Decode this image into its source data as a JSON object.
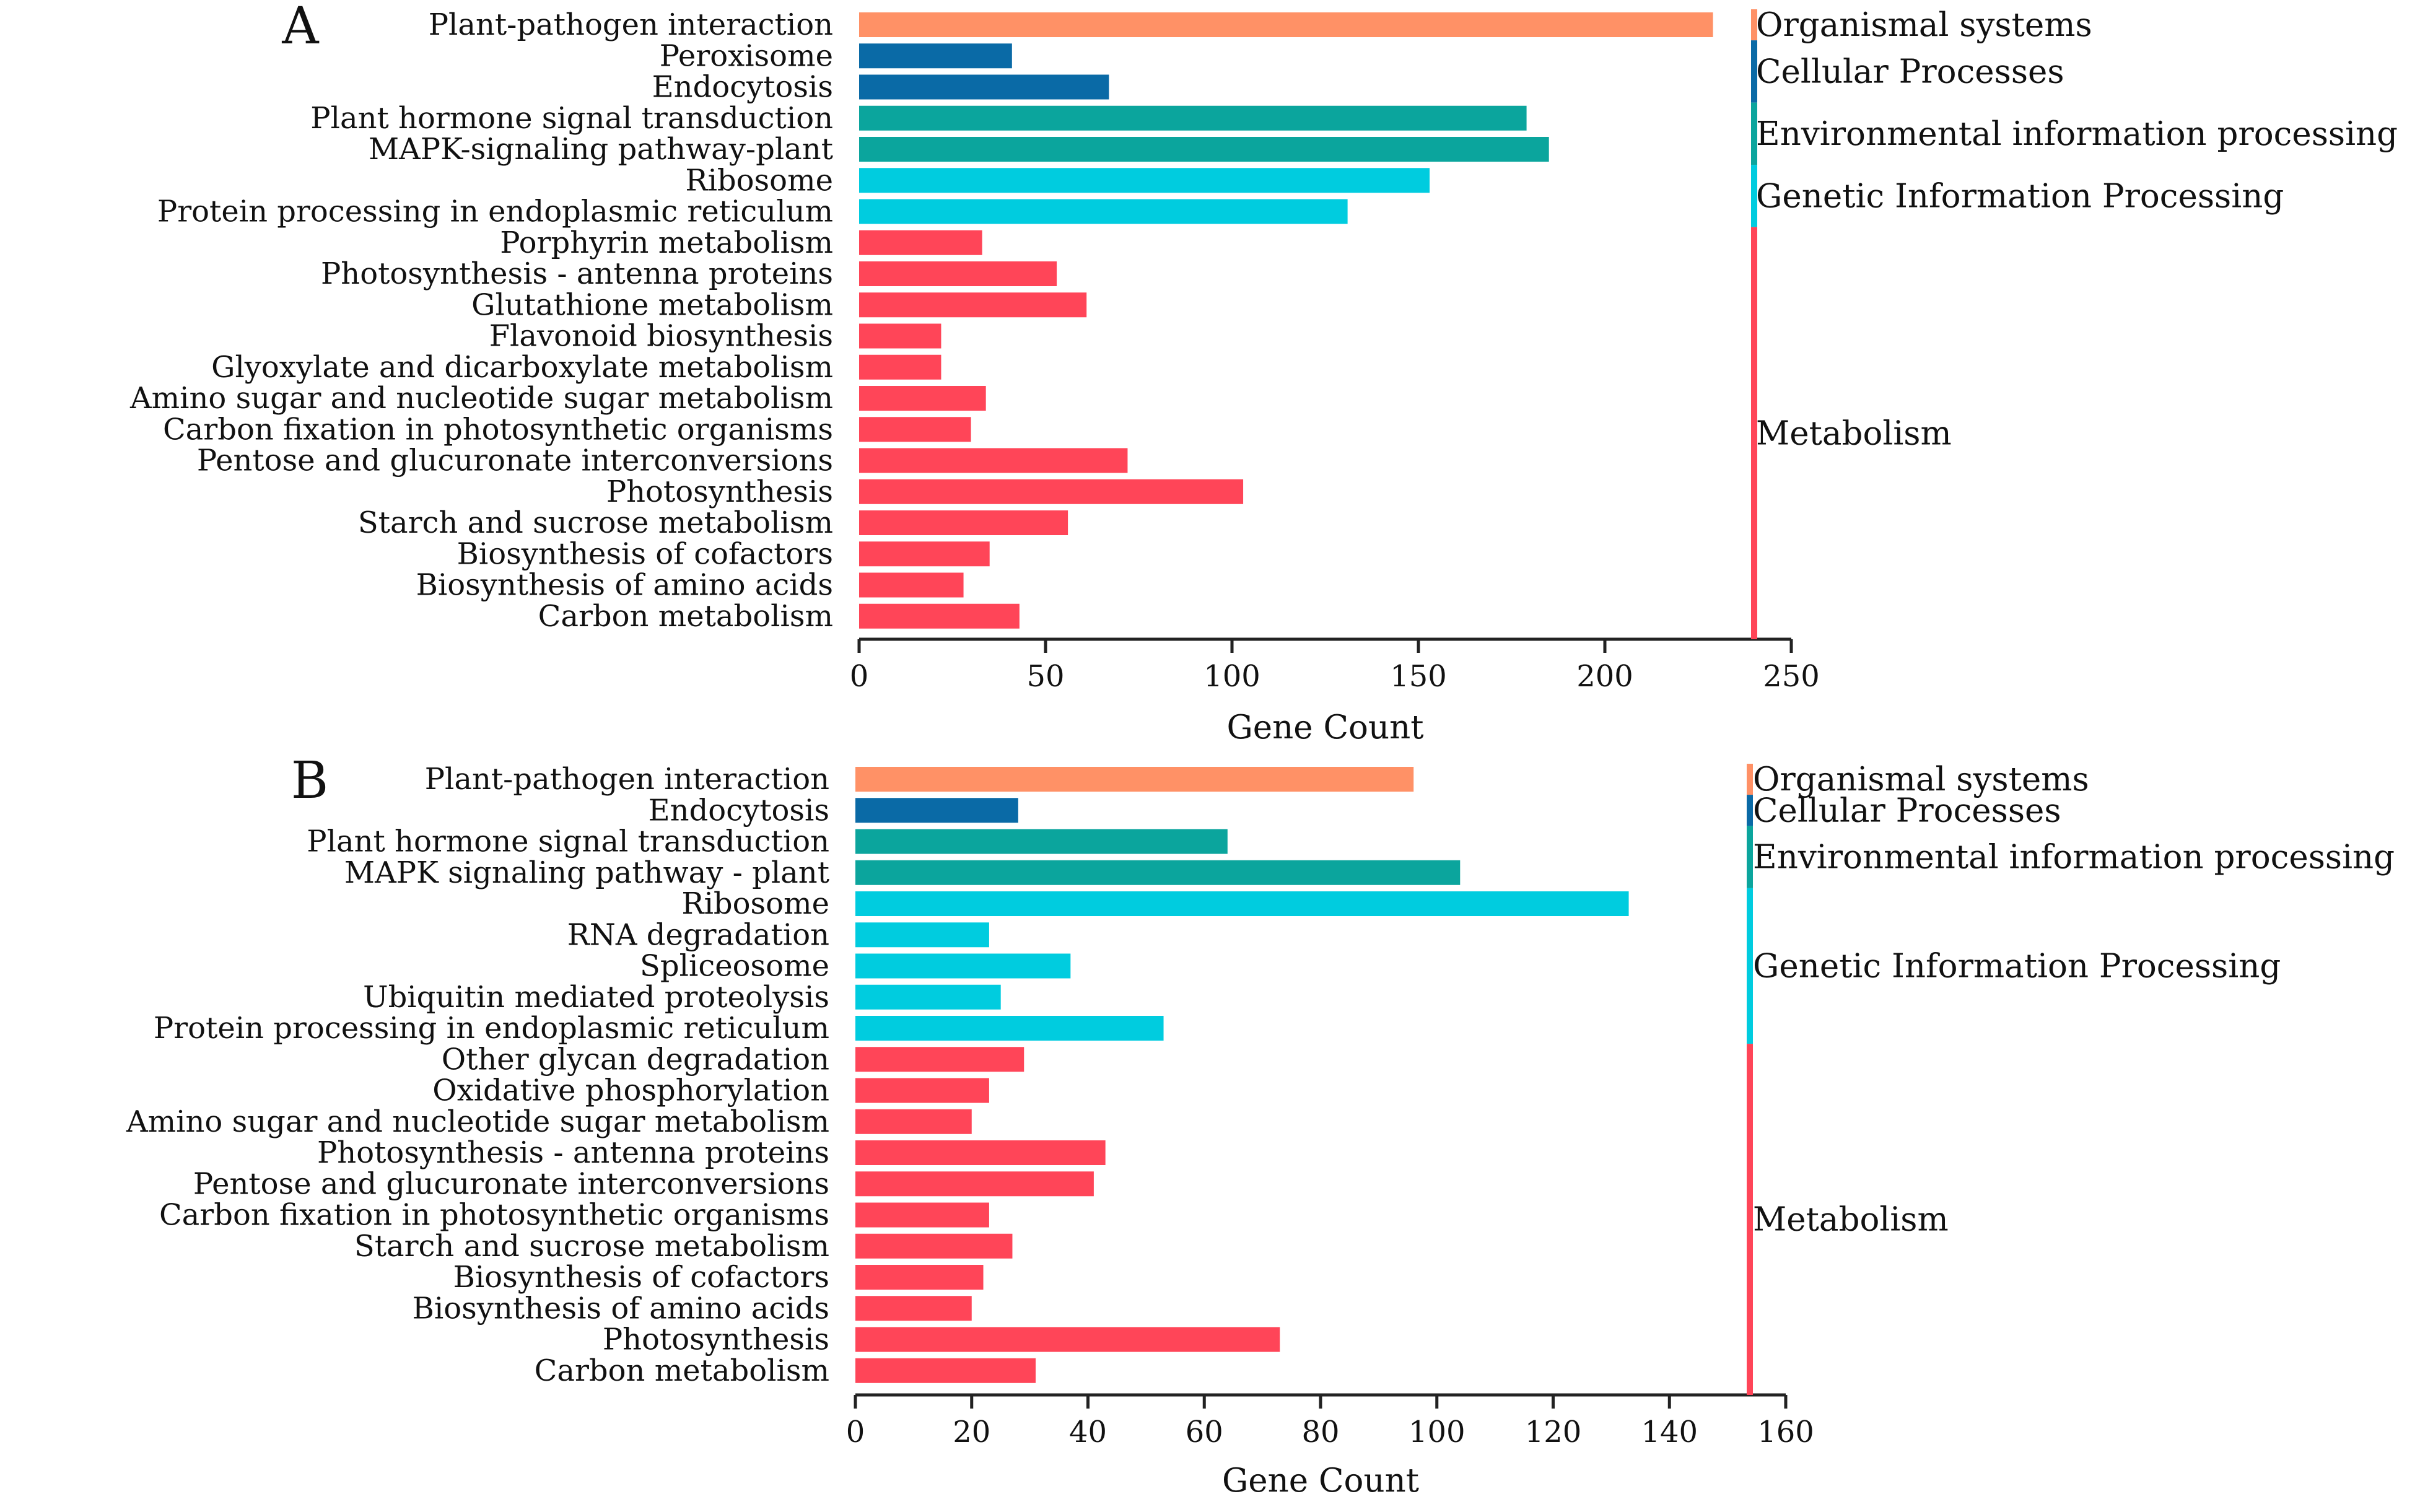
{
  "colors": {
    "Organismal systems": "#FF9166",
    "Cellular Processes": "#0A6AA6",
    "Environmental information processing": "#0BA59D",
    "Genetic Information Processing": "#00CCDF",
    "Metabolism": "#FF4558"
  },
  "chart_data": [
    {
      "type": "bar",
      "orientation": "horizontal",
      "panel": "A",
      "xlabel": "Gene Count",
      "xlim": [
        0,
        250
      ],
      "xticks": [
        0,
        50,
        100,
        150,
        200,
        250
      ],
      "categories": [
        "Plant-pathogen interaction",
        "Peroxisome",
        "Endocytosis",
        "Plant hormone signal transduction",
        "MAPK-signaling pathway-plant",
        "Ribosome",
        "Protein processing in endoplasmic reticulum",
        "Porphyrin metabolism",
        "Photosynthesis - antenna proteins",
        "Glutathione metabolism",
        "Flavonoid biosynthesis",
        "Glyoxylate and dicarboxylate metabolism",
        "Amino sugar and nucleotide sugar metabolism",
        "Carbon fixation in photosynthetic organisms",
        "Pentose and glucuronate interconversions",
        "Photosynthesis",
        "Starch and sucrose metabolism",
        "Biosynthesis of cofactors",
        "Biosynthesis of amino acids",
        "Carbon metabolism"
      ],
      "values": [
        229,
        41,
        67,
        179,
        185,
        153,
        131,
        33,
        53,
        61,
        22,
        22,
        34,
        30,
        72,
        103,
        56,
        35,
        28,
        43
      ],
      "groups_per_bar": [
        "Organismal systems",
        "Cellular Processes",
        "Cellular Processes",
        "Environmental information processing",
        "Environmental information processing",
        "Genetic Information Processing",
        "Genetic Information Processing",
        "Metabolism",
        "Metabolism",
        "Metabolism",
        "Metabolism",
        "Metabolism",
        "Metabolism",
        "Metabolism",
        "Metabolism",
        "Metabolism",
        "Metabolism",
        "Metabolism",
        "Metabolism",
        "Metabolism"
      ],
      "group_labels": [
        "Organismal systems",
        "Cellular Processes",
        "Environmental information processing",
        "Genetic Information Processing",
        "Metabolism"
      ]
    },
    {
      "type": "bar",
      "orientation": "horizontal",
      "panel": "B",
      "xlabel": "Gene Count",
      "xlim": [
        0,
        160
      ],
      "xticks": [
        0,
        20,
        40,
        60,
        80,
        100,
        120,
        140,
        160
      ],
      "categories": [
        "Plant-pathogen interaction",
        "Endocytosis",
        "Plant hormone signal transduction",
        "MAPK signaling pathway - plant",
        "Ribosome",
        "RNA degradation",
        "Spliceosome",
        "Ubiquitin mediated proteolysis",
        "Protein processing in endoplasmic reticulum",
        "Other glycan degradation",
        "Oxidative phosphorylation",
        "Amino sugar and nucleotide sugar metabolism",
        "Photosynthesis - antenna proteins",
        "Pentose and glucuronate interconversions",
        "Carbon fixation in photosynthetic organisms",
        "Starch and sucrose metabolism",
        "Biosynthesis of cofactors",
        "Biosynthesis of amino acids",
        "Photosynthesis",
        "Carbon metabolism"
      ],
      "values": [
        96,
        28,
        64,
        104,
        133,
        23,
        37,
        25,
        53,
        29,
        23,
        20,
        43,
        41,
        23,
        27,
        22,
        20,
        73,
        31
      ],
      "groups_per_bar": [
        "Organismal systems",
        "Cellular Processes",
        "Environmental information processing",
        "Environmental information processing",
        "Genetic Information Processing",
        "Genetic Information Processing",
        "Genetic Information Processing",
        "Genetic Information Processing",
        "Genetic Information Processing",
        "Metabolism",
        "Metabolism",
        "Metabolism",
        "Metabolism",
        "Metabolism",
        "Metabolism",
        "Metabolism",
        "Metabolism",
        "Metabolism",
        "Metabolism",
        "Metabolism"
      ],
      "group_labels": [
        "Organismal systems",
        "Cellular Processes",
        "Environmental information processing",
        "Genetic Information Processing",
        "Metabolism"
      ]
    }
  ]
}
